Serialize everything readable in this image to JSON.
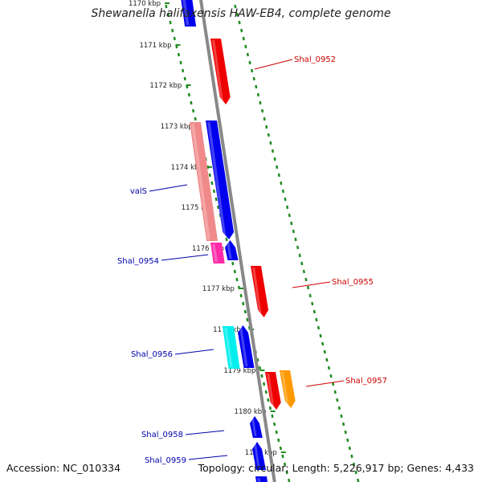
{
  "title": "Shewanella halifaxensis HAW-EB4, complete genome",
  "footer": {
    "accession": "Accession: NC_010334",
    "summary": "Topology: circular; Length: 5,226,917 bp; Genes: 4,433"
  },
  "ticks": [
    {
      "label": "1170 kbp"
    },
    {
      "label": "1171 kbp"
    },
    {
      "label": "1172 kbp"
    },
    {
      "label": "1173 kbp"
    },
    {
      "label": "1174 kbp"
    },
    {
      "label": "1175 kbp"
    },
    {
      "label": "1176 kbp"
    },
    {
      "label": "1177 kbp"
    },
    {
      "label": "1178 kbp"
    },
    {
      "label": "1179 kbp"
    },
    {
      "label": "1180 kbp"
    },
    {
      "label": "1181 kbp"
    }
  ],
  "genes": [
    {
      "id": "g-top",
      "label": "",
      "color": "#0000ee"
    },
    {
      "id": "Shal_0952",
      "label": "Shal_0952",
      "color": "#ee0000"
    },
    {
      "id": "valS-rna",
      "label": "valS",
      "color": "#f08a8a"
    },
    {
      "id": "valS",
      "label": "",
      "color": "#0000ee"
    },
    {
      "id": "Shal_0954",
      "label": "Shal_0954",
      "color": "#ff2aa8"
    },
    {
      "id": "g-small",
      "label": "",
      "color": "#0000ee"
    },
    {
      "id": "Shal_0955",
      "label": "Shal_0955",
      "color": "#ee0000"
    },
    {
      "id": "Shal_0956",
      "label": "Shal_0956",
      "color": "#00eeee"
    },
    {
      "id": "g-0956b",
      "label": "",
      "color": "#0000ee"
    },
    {
      "id": "Shal_0957a",
      "label": "",
      "color": "#ee0000"
    },
    {
      "id": "Shal_0957",
      "label": "Shal_0957",
      "color": "#ff9900"
    },
    {
      "id": "Shal_0958",
      "label": "Shal_0958",
      "color": "#0000ee"
    },
    {
      "id": "Shal_0959",
      "label": "Shal_0959",
      "color": "#0000ee"
    },
    {
      "id": "g-bottom",
      "label": "",
      "color": "#0000ee"
    }
  ],
  "colors": {
    "backbone": "#888888",
    "tick": "#228b22",
    "label_forward": "#cc0000",
    "label_reverse": "#0000aa"
  }
}
